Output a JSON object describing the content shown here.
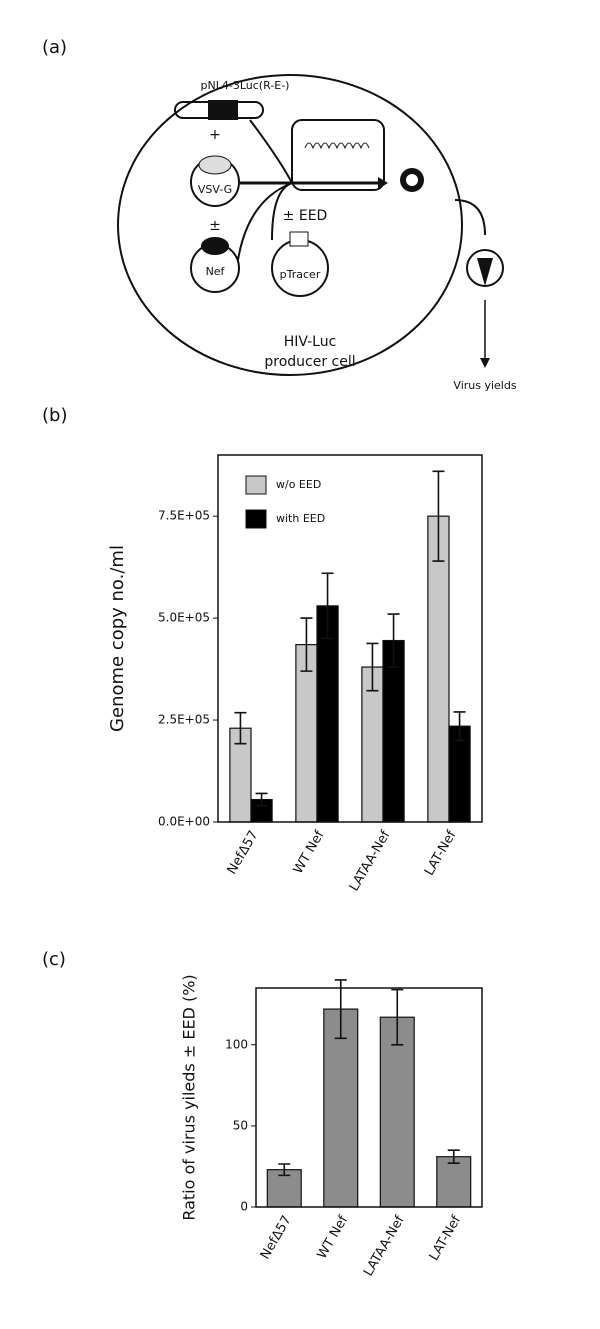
{
  "panels": [
    "(a)",
    "(b)",
    "(c)"
  ],
  "diagram": {
    "plasmid": "pNL4-3Luc(R-E-)",
    "plus": "+",
    "vsvg": "VSV-G",
    "plusminus": "±",
    "nef": "Nef",
    "eed": "± EED",
    "ptracer": "pTracer",
    "cell_line1": "HIV-Luc",
    "cell_line2": "producer cell",
    "yields": "Virus yields"
  },
  "chart_data": [
    {
      "type": "bar",
      "y_label": "Genome copy no./ml",
      "categories": [
        "NefΔ57",
        "WT Nef",
        "LATAA-Nef",
        "LAT-Nef"
      ],
      "series": [
        {
          "name": "w/o EED",
          "color": "#c8c8c8",
          "values": [
            230000,
            435000,
            380000,
            750000
          ],
          "errors": [
            38000,
            65000,
            58000,
            110000
          ]
        },
        {
          "name": "with EED",
          "color": "#000000",
          "values": [
            55000,
            530000,
            445000,
            235000
          ],
          "errors": [
            15000,
            80000,
            65000,
            35000
          ]
        }
      ],
      "ylim": [
        0,
        900000
      ],
      "yticks": [
        {
          "value": 0,
          "label": "0.0E+00"
        },
        {
          "value": 250000,
          "label": "2.5E+05"
        },
        {
          "value": 500000,
          "label": "5.0E+05"
        },
        {
          "value": 750000,
          "label": "7.5E+05"
        }
      ],
      "legend": "upper-left"
    },
    {
      "type": "bar",
      "y_label": "Ratio of virus yileds ± EED (%)",
      "categories": [
        "NefΔ57",
        "WT Nef",
        "LATAA-Nef",
        "LAT-Nef"
      ],
      "values": [
        23,
        122,
        117,
        31
      ],
      "errors": [
        3.5,
        18,
        17,
        4
      ],
      "color": "#8c8c8c",
      "ylim": [
        0,
        135
      ],
      "yticks": [
        0,
        50,
        100
      ]
    }
  ]
}
